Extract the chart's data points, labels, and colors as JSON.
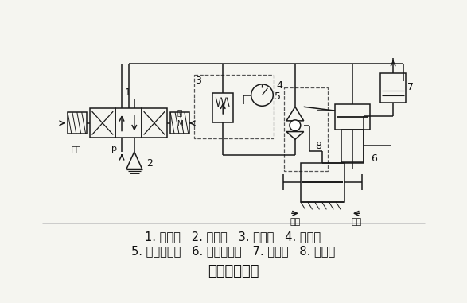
{
  "bg": "#f5f5f0",
  "dc": "#1a1a1a",
  "title": "夹具系统回路",
  "title_fontsize": 13,
  "line1": "1. 换向阀   2. 消声器   3. 减压阀   4. 压力表",
  "line2": "5. 快速放气阀   6. 气液增压器   7. 储油器   8. 液压缸",
  "text_fontsize": 10.5
}
